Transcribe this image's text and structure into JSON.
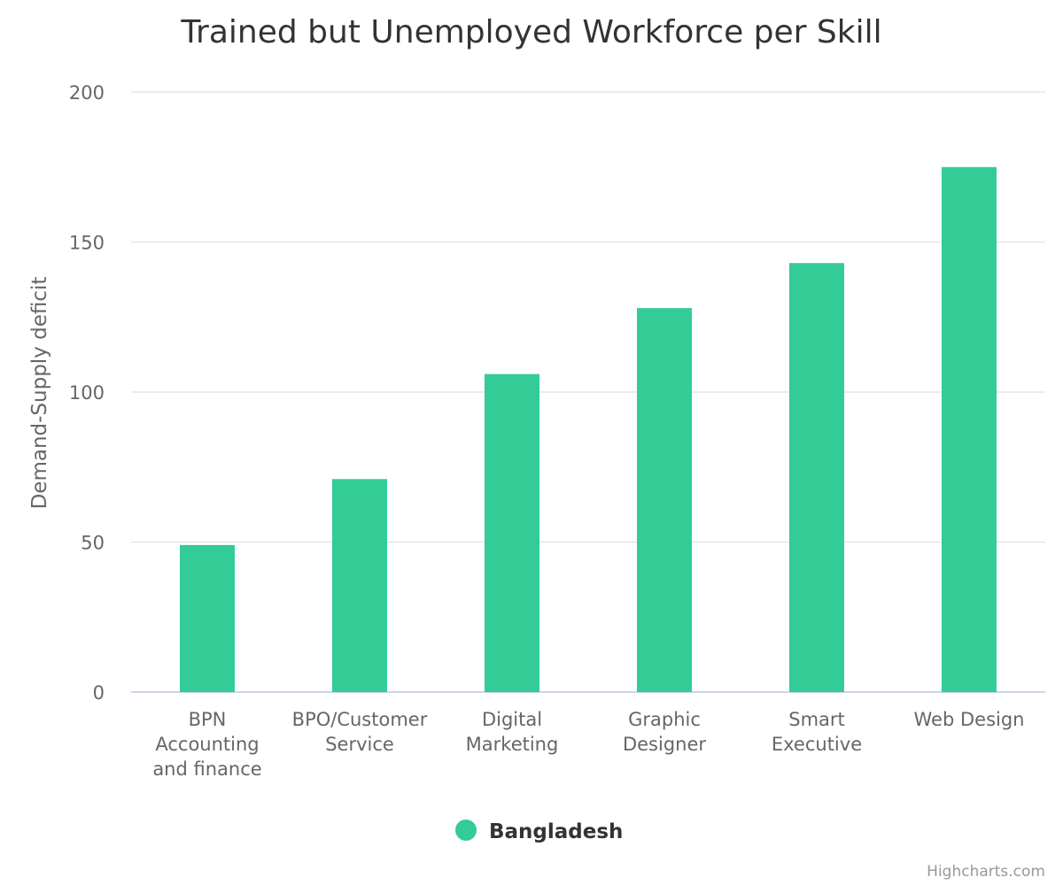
{
  "chart_data": {
    "type": "bar",
    "title": "Trained but Unemployed Workforce per Skill",
    "ylabel": "Demand-Supply deficit",
    "xlabel": "",
    "ylim": [
      0,
      200
    ],
    "yticks": [
      0,
      50,
      100,
      150,
      200
    ],
    "categories": [
      [
        "BPN",
        "Accounting",
        "and finance"
      ],
      [
        "BPO/Customer",
        "Service"
      ],
      [
        "Digital",
        "Marketing"
      ],
      [
        "Graphic",
        "Designer"
      ],
      [
        "Smart",
        "Executive"
      ],
      [
        "Web Design"
      ]
    ],
    "series": [
      {
        "name": "Bangladesh",
        "color": "#33cc96",
        "values": [
          49,
          71,
          106,
          128,
          143,
          175
        ]
      }
    ],
    "grid": true,
    "legend_position": "bottom-center",
    "credits": "Highcharts.com"
  }
}
